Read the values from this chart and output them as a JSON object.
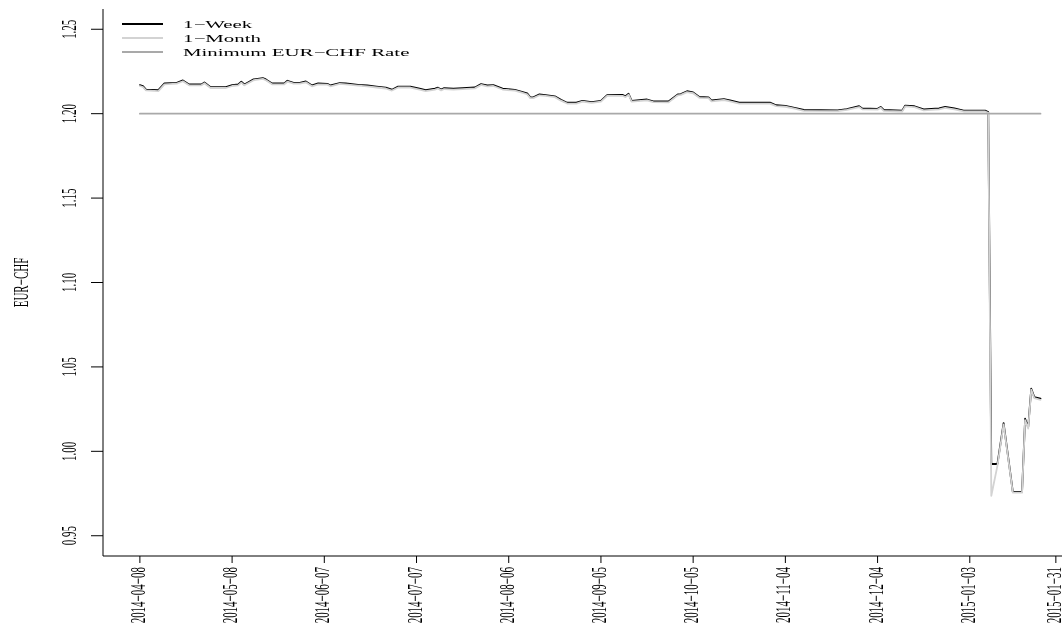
{
  "chart_data": {
    "type": "line",
    "ylabel": "EUR−CHF",
    "legend": "top left",
    "xlim": [
      "2014-03-27",
      "2015-02-02"
    ],
    "ylim": [
      0.938,
      1.262
    ],
    "xticks": [
      {
        "value": "2014-04-08",
        "label": "2014−04−08"
      },
      {
        "value": "2014-05-08",
        "label": "2014−05−08"
      },
      {
        "value": "2014-06-07",
        "label": "2014−06−07"
      },
      {
        "value": "2014-07-07",
        "label": "2014−07−07"
      },
      {
        "value": "2014-08-06",
        "label": "2014−08−06"
      },
      {
        "value": "2014-09-05",
        "label": "2014−09−05"
      },
      {
        "value": "2014-10-05",
        "label": "2014−10−05"
      },
      {
        "value": "2014-11-04",
        "label": "2014−11−04"
      },
      {
        "value": "2014-12-04",
        "label": "2014−12−04"
      },
      {
        "value": "2015-01-03",
        "label": "2015−01−03"
      },
      {
        "value": "2015-01-31",
        "label": "2015−01−31"
      }
    ],
    "yticks": [
      0.95,
      {
        "value": 1,
        "label": "1.00"
      },
      1.05,
      {
        "value": 1.1,
        "label": "1.10"
      },
      1.15,
      {
        "value": 1.2,
        "label": "1.20"
      },
      1.25
    ],
    "x": [
      "2014-04-08",
      "2014-04-09",
      "2014-04-10",
      "2014-04-14",
      "2014-04-16",
      "2014-04-20",
      "2014-04-22",
      "2014-04-24",
      "2014-04-28",
      "2014-04-29",
      "2014-05-01",
      "2014-05-06",
      "2014-05-08",
      "2014-05-10",
      "2014-05-11",
      "2014-05-12",
      "2014-05-15",
      "2014-05-18",
      "2014-05-19",
      "2014-05-21",
      "2014-05-25",
      "2014-05-26",
      "2014-05-28",
      "2014-05-30",
      "2014-06-01",
      "2014-06-03",
      "2014-06-05",
      "2014-06-08",
      "2014-06-09",
      "2014-06-12",
      "2014-06-14",
      "2014-06-18",
      "2014-06-21",
      "2014-06-24",
      "2014-06-27",
      "2014-06-29",
      "2014-07-01",
      "2014-07-05",
      "2014-07-08",
      "2014-07-10",
      "2014-07-13",
      "2014-07-14",
      "2014-07-15",
      "2014-07-16",
      "2014-07-19",
      "2014-07-22",
      "2014-07-26",
      "2014-07-28",
      "2014-07-30",
      "2014-08-01",
      "2014-08-04",
      "2014-08-08",
      "2014-08-10",
      "2014-08-12",
      "2014-08-13",
      "2014-08-14",
      "2014-08-16",
      "2014-08-18",
      "2014-08-21",
      "2014-08-23",
      "2014-08-25",
      "2014-08-28",
      "2014-08-30",
      "2014-09-02",
      "2014-09-05",
      "2014-09-07",
      "2014-09-12",
      "2014-09-13",
      "2014-09-14",
      "2014-09-15",
      "2014-09-20",
      "2014-09-22",
      "2014-09-27",
      "2014-09-30",
      "2014-10-01",
      "2014-10-03",
      "2014-10-05",
      "2014-10-07",
      "2014-10-10",
      "2014-10-11",
      "2014-10-15",
      "2014-10-17",
      "2014-10-20",
      "2014-10-30",
      "2014-11-01",
      "2014-11-04",
      "2014-11-07",
      "2014-11-10",
      "2014-11-21",
      "2014-11-24",
      "2014-11-28",
      "2014-11-29",
      "2014-12-04",
      "2014-12-05",
      "2014-12-06",
      "2014-12-12",
      "2014-12-13",
      "2014-12-16",
      "2014-12-19",
      "2014-12-24",
      "2014-12-26",
      "2014-12-29",
      "2015-01-01",
      "2015-01-08",
      "2015-01-09",
      "2015-01-10",
      "2015-01-12",
      "2015-01-14",
      "2015-01-17",
      "2015-01-20",
      "2015-01-21",
      "2015-01-22",
      "2015-01-23",
      "2015-01-24",
      "2015-01-26"
    ],
    "series": [
      {
        "name": "1−Week",
        "color": "#000000",
        "values": [
          1.2169,
          1.2163,
          1.2143,
          1.2139,
          1.2179,
          1.2183,
          1.2197,
          1.2173,
          1.2173,
          1.2185,
          1.2157,
          1.2157,
          1.2169,
          1.2173,
          1.2189,
          1.2173,
          1.2203,
          1.2211,
          1.2203,
          1.2179,
          1.2179,
          1.2195,
          1.2183,
          1.2183,
          1.2191,
          1.2167,
          1.2179,
          1.2177,
          1.2167,
          1.2181,
          1.2179,
          1.2171,
          1.2167,
          1.216,
          1.2154,
          1.2142,
          1.216,
          1.216,
          1.2148,
          1.2139,
          1.2148,
          1.2154,
          1.2143,
          1.2151,
          1.2148,
          1.2151,
          1.2155,
          1.2175,
          1.2167,
          1.2169,
          1.2148,
          1.2141,
          1.2131,
          1.212,
          1.2097,
          1.2097,
          1.2114,
          1.211,
          1.2103,
          1.2082,
          1.2065,
          1.2065,
          1.2076,
          1.2069,
          1.2076,
          1.211,
          1.2111,
          1.2103,
          1.2118,
          1.2076,
          1.2084,
          1.2073,
          1.2072,
          1.2114,
          1.2116,
          1.2133,
          1.2126,
          1.2099,
          1.2097,
          1.2078,
          1.2086,
          1.2078,
          1.2065,
          1.2065,
          1.205,
          1.2046,
          1.2035,
          1.2022,
          1.202,
          1.2027,
          1.2044,
          1.2031,
          1.2029,
          1.204,
          1.2022,
          1.2018,
          1.2048,
          1.2044,
          1.2025,
          1.2031,
          1.204,
          1.2031,
          1.2018,
          1.2018,
          1.201,
          0.9925,
          0.9925,
          1.0167,
          0.976,
          0.976,
          1.0193,
          1.0143,
          1.0371,
          1.0321,
          1.0312
        ]
      },
      {
        "name": "1−Month",
        "color": "#d3d3d3",
        "values": [
          1.2164,
          1.2158,
          1.2138,
          1.2134,
          1.2174,
          1.2178,
          1.2192,
          1.2168,
          1.2168,
          1.218,
          1.2152,
          1.2152,
          1.2164,
          1.2168,
          1.2184,
          1.2168,
          1.2198,
          1.2206,
          1.2198,
          1.2174,
          1.2174,
          1.219,
          1.2178,
          1.2178,
          1.2186,
          1.2162,
          1.2174,
          1.2172,
          1.2162,
          1.2176,
          1.2174,
          1.2166,
          1.2162,
          1.2155,
          1.2149,
          1.2137,
          1.2155,
          1.2155,
          1.2143,
          1.2134,
          1.2143,
          1.2149,
          1.2138,
          1.2146,
          1.2143,
          1.2146,
          1.215,
          1.217,
          1.2162,
          1.2164,
          1.2143,
          1.2136,
          1.2126,
          1.2115,
          1.2092,
          1.2092,
          1.2109,
          1.2105,
          1.2098,
          1.2077,
          1.206,
          1.206,
          1.2071,
          1.2064,
          1.2071,
          1.2105,
          1.2106,
          1.2098,
          1.2113,
          1.2071,
          1.2079,
          1.2068,
          1.2067,
          1.2109,
          1.2111,
          1.2128,
          1.2121,
          1.2094,
          1.2092,
          1.2073,
          1.2081,
          1.2073,
          1.206,
          1.206,
          1.2045,
          1.2041,
          1.203,
          1.2017,
          1.2015,
          1.2022,
          1.2039,
          1.2026,
          1.2024,
          1.2035,
          1.2017,
          1.2013,
          1.2043,
          1.2039,
          1.202,
          1.2026,
          1.2035,
          1.2026,
          1.2013,
          1.2013,
          1.2005,
          0.9737,
          0.9915,
          1.016,
          0.9755,
          0.9755,
          1.0185,
          1.0135,
          1.0365,
          1.0315,
          1.0305
        ]
      },
      {
        "name": "Minimum EUR−CHF Rate",
        "color": "#a9a9a9",
        "x": [
          "2014-04-08",
          "2015-01-26"
        ],
        "values": [
          1.2,
          1.2
        ]
      }
    ]
  }
}
